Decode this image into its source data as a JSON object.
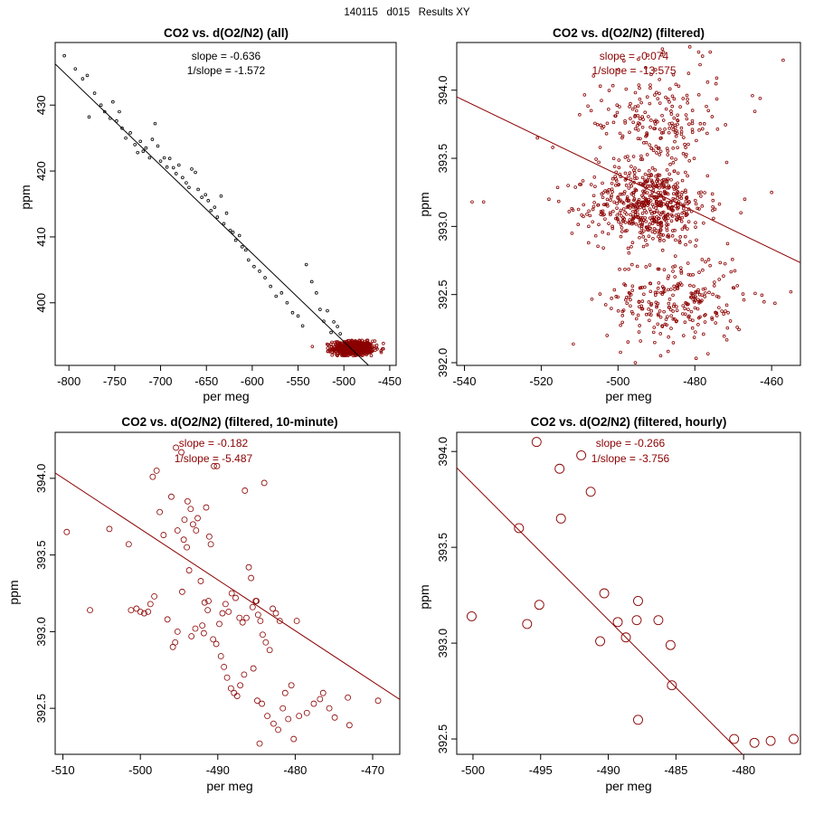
{
  "figure": {
    "suptitle": "140115   d015   Results XY",
    "background": "#ffffff"
  },
  "chart_data": [
    {
      "type": "scatter",
      "title": "CO2 vs. d(O2/N2) (all)",
      "xlabel": "per meg",
      "ylabel": "ppm",
      "xlim": [
        -815,
        -443
      ],
      "ylim": [
        390.5,
        439.5
      ],
      "xticks": [
        -800,
        -750,
        -700,
        -650,
        -600,
        -550,
        -500,
        -450
      ],
      "yticks": [
        400,
        410,
        420,
        430
      ],
      "fit": {
        "slope": -0.1338,
        "intercept": 327.2
      },
      "annotation": [
        "slope = -0.636",
        "1/slope = -1.572"
      ],
      "annotation_color": "#000000",
      "series": [
        {
          "name": "all",
          "color": "#000000",
          "points": [
            [
              -805,
              437.5
            ],
            [
              -793,
              435.5
            ],
            [
              -785,
              434
            ],
            [
              -780,
              434.5
            ],
            [
              -778,
              428.2
            ],
            [
              -772,
              431.8
            ],
            [
              -765,
              430
            ],
            [
              -761,
              429
            ],
            [
              -755,
              428
            ],
            [
              -752,
              430.5
            ],
            [
              -748,
              427.6
            ],
            [
              -745,
              429
            ],
            [
              -742,
              426.5
            ],
            [
              -738,
              425
            ],
            [
              -733,
              425.8
            ],
            [
              -728,
              424
            ],
            [
              -725,
              422.8
            ],
            [
              -722,
              424.5
            ],
            [
              -719,
              423
            ],
            [
              -716,
              423.5
            ],
            [
              -712,
              422
            ],
            [
              -709,
              424.8
            ],
            [
              -706,
              427.2
            ],
            [
              -703,
              423.8
            ],
            [
              -700,
              421.5
            ],
            [
              -696,
              422
            ],
            [
              -693,
              420.6
            ],
            [
              -690,
              421.9
            ],
            [
              -686,
              420.5
            ],
            [
              -683,
              419.6
            ],
            [
              -680,
              420.9
            ],
            [
              -676,
              419
            ],
            [
              -672,
              418.2
            ],
            [
              -669,
              417.5
            ],
            [
              -666,
              420.3
            ],
            [
              -662,
              419.8
            ],
            [
              -659,
              417.2
            ],
            [
              -655,
              416
            ],
            [
              -651,
              416.4
            ],
            [
              -648,
              415.5
            ],
            [
              -645,
              414
            ],
            [
              -641,
              414.5
            ],
            [
              -638,
              413
            ],
            [
              -634,
              416.2
            ],
            [
              -631,
              412
            ],
            [
              -628,
              413.6
            ],
            [
              -624,
              411
            ],
            [
              -621,
              410.7
            ],
            [
              -618,
              409.5
            ],
            [
              -614,
              410.2
            ],
            [
              -611,
              408.5
            ],
            [
              -607,
              408
            ],
            [
              -604,
              406.5
            ],
            [
              -598,
              405.5
            ],
            [
              -592,
              404.8
            ],
            [
              -586,
              403.8
            ],
            [
              -580,
              402.5
            ],
            [
              -574,
              401
            ],
            [
              -568,
              401.5
            ],
            [
              -562,
              400
            ],
            [
              -556,
              398.5
            ],
            [
              -550,
              398
            ],
            [
              -545,
              396.5
            ],
            [
              -541,
              405.8
            ],
            [
              -535,
              403.2
            ],
            [
              -530,
              401.5
            ],
            [
              -526,
              399
            ],
            [
              -522,
              397.2
            ],
            [
              -518,
              398.8
            ],
            [
              -514,
              395.5
            ],
            [
              -511,
              397.1
            ],
            [
              -507,
              396.4
            ],
            [
              -504,
              395.3
            ]
          ]
        },
        {
          "name": "filtered",
          "color": "#8b0000",
          "cloud": true,
          "cx": -490,
          "cy": 393.1,
          "sx": 11,
          "sy": 0.55,
          "n": 650,
          "xmin": -540,
          "xmax": -456,
          "ymin": 392.0,
          "ymax": 394.3
        }
      ]
    },
    {
      "type": "scatter",
      "title": "CO2 vs. d(O2/N2) (filtered)",
      "xlabel": "per meg",
      "ylabel": "ppm",
      "xlim": [
        -542,
        -452.5
      ],
      "ylim": [
        391.98,
        394.35
      ],
      "xticks": [
        -540,
        -520,
        -500,
        -480,
        -460
      ],
      "yticks": [
        392.0,
        392.5,
        393.0,
        393.5,
        394.0
      ],
      "fit": {
        "slope": -0.0136,
        "intercept": 386.58
      },
      "annotation": [
        "slope = -0.074",
        "1/slope = -13.575"
      ],
      "annotation_color": "#8b0000",
      "series": [
        {
          "name": "filtered",
          "color": "#8b0000",
          "cloud": true,
          "clusters": [
            {
              "cx": -492,
              "cy": 393.15,
              "sx": 7.5,
              "sy": 0.14,
              "n": 520
            },
            {
              "cx": -490,
              "cy": 393.75,
              "sx": 8,
              "sy": 0.22,
              "n": 230
            },
            {
              "cx": -485,
              "cy": 392.45,
              "sx": 9,
              "sy": 0.17,
              "n": 260
            }
          ],
          "extra_points": [
            [
              -538,
              393.18
            ],
            [
              -535,
              393.18
            ],
            [
              -521,
              393.65
            ],
            [
              -517,
              393.58
            ],
            [
              -510,
              393.82
            ],
            [
              -512,
              392.95
            ],
            [
              -507,
              393.85
            ],
            [
              -479,
              394.28
            ],
            [
              -478,
              394.25
            ],
            [
              -476,
              394.28
            ],
            [
              -470,
              392.55
            ],
            [
              -467,
              393.2
            ],
            [
              -465,
              393.96
            ],
            [
              -463,
              393.94
            ],
            [
              -457,
              394.22
            ],
            [
              -455,
              392.52
            ],
            [
              -460,
              393.25
            ],
            [
              -518,
              393.2
            ],
            [
              -513,
              393.3
            ],
            [
              -468,
              393.1
            ]
          ]
        }
      ]
    },
    {
      "type": "scatter",
      "title": "CO2 vs. d(O2/N2) (filtered, 10-minute)",
      "xlabel": "per meg",
      "ylabel": "ppm",
      "xlim": [
        -511,
        -466.5
      ],
      "ylim": [
        392.2,
        394.3
      ],
      "xticks": [
        -510,
        -500,
        -490,
        -480,
        -470
      ],
      "yticks": [
        392.5,
        393.0,
        393.5,
        394.0
      ],
      "fit": {
        "slope": -0.0332,
        "intercept": 377.07
      },
      "annotation": [
        "slope = -0.182",
        "1/slope = -5.487"
      ],
      "annotation_color": "#8b0000",
      "series": [
        {
          "name": "10-minute",
          "color": "#8b0000",
          "points": [
            [
              -509.5,
              393.65
            ],
            [
              -506.5,
              393.14
            ],
            [
              -504,
              393.67
            ],
            [
              -501.5,
              393.57
            ],
            [
              -501.2,
              393.14
            ],
            [
              -500.5,
              393.15
            ],
            [
              -500,
              393.13
            ],
            [
              -499.5,
              393.12
            ],
            [
              -499,
              393.13
            ],
            [
              -498.7,
              393.18
            ],
            [
              -498.2,
              393.23
            ],
            [
              -497.5,
              393.78
            ],
            [
              -498.4,
              394.01
            ],
            [
              -497.9,
              394.05
            ],
            [
              -497,
              393.63
            ],
            [
              -496.5,
              393.08
            ],
            [
              -496,
              393.88
            ],
            [
              -495.2,
              393.66
            ],
            [
              -495.4,
              394.2
            ],
            [
              -494.7,
              394.17
            ],
            [
              -494.3,
              393.73
            ],
            [
              -494,
              393.55
            ],
            [
              -494.4,
              393.6
            ],
            [
              -493.9,
              393.85
            ],
            [
              -493.5,
              393.8
            ],
            [
              -493.7,
              393.4
            ],
            [
              -493.2,
              393.7
            ],
            [
              -492.8,
              393.66
            ],
            [
              -492.6,
              393.74
            ],
            [
              -492.2,
              393.33
            ],
            [
              -491.7,
              393.19
            ],
            [
              -491.3,
              393.14
            ],
            [
              -491.1,
              393.62
            ],
            [
              -490.9,
              393.57
            ],
            [
              -491.5,
              393.81
            ],
            [
              -491.2,
              393.2
            ],
            [
              -490.5,
              394.08
            ],
            [
              -490.1,
              394.08
            ],
            [
              -489.8,
              393.05
            ],
            [
              -489.4,
              393.12
            ],
            [
              -489,
              393.18
            ],
            [
              -488.6,
              393.13
            ],
            [
              -488.2,
              393.25
            ],
            [
              -487.7,
              393.22
            ],
            [
              -487.2,
              393.09
            ],
            [
              -486.8,
              393.06
            ],
            [
              -486.3,
              393.09
            ],
            [
              -486,
              393.42
            ],
            [
              -485.7,
              393.35
            ],
            [
              -485.5,
              393.16
            ],
            [
              -485.1,
              393.2
            ],
            [
              -484.8,
              393.11
            ],
            [
              -484.5,
              393.07
            ],
            [
              -484.2,
              392.98
            ],
            [
              -483.8,
              392.93
            ],
            [
              -483.3,
              392.88
            ],
            [
              -482.9,
              393.15
            ],
            [
              -482.5,
              393.12
            ],
            [
              -482,
              393.07
            ],
            [
              -486.5,
              393.92
            ],
            [
              -484,
              393.97
            ],
            [
              -485,
              393.2
            ],
            [
              -492,
              393.04
            ],
            [
              -491.8,
              392.99
            ],
            [
              -490.6,
              392.95
            ],
            [
              -490.2,
              392.92
            ],
            [
              -489.6,
              392.84
            ],
            [
              -489.2,
              392.77
            ],
            [
              -488.8,
              392.7
            ],
            [
              -488.3,
              392.63
            ],
            [
              -487.9,
              392.6
            ],
            [
              -487.5,
              392.58
            ],
            [
              -487.1,
              392.65
            ],
            [
              -486.6,
              392.72
            ],
            [
              -485.4,
              392.76
            ],
            [
              -484.9,
              392.55
            ],
            [
              -484.3,
              392.53
            ],
            [
              -483.6,
              392.45
            ],
            [
              -482.8,
              392.4
            ],
            [
              -482.2,
              392.36
            ],
            [
              -481.6,
              392.5
            ],
            [
              -480.9,
              392.43
            ],
            [
              -480.2,
              392.3
            ],
            [
              -479.5,
              392.45
            ],
            [
              -478.5,
              392.47
            ],
            [
              -477.6,
              392.53
            ],
            [
              -476.8,
              392.56
            ],
            [
              -476.4,
              392.6
            ],
            [
              -475.6,
              392.5
            ],
            [
              -474.9,
              392.44
            ],
            [
              -473.2,
              392.57
            ],
            [
              -473,
              392.39
            ],
            [
              -469.3,
              392.55
            ],
            [
              -480.5,
              392.65
            ],
            [
              -481.3,
              392.6
            ],
            [
              -484.6,
              392.27
            ],
            [
              -479.8,
              393.07
            ],
            [
              -495.2,
              393.0
            ],
            [
              -495.5,
              392.93
            ],
            [
              -495.8,
              392.9
            ],
            [
              -493.4,
              392.97
            ],
            [
              -492.9,
              393.02
            ],
            [
              -494.6,
              393.26
            ]
          ]
        }
      ]
    },
    {
      "type": "scatter",
      "title": "CO2 vs. d(O2/N2) (filtered, hourly)",
      "xlabel": "per meg",
      "ylabel": "ppm",
      "xlim": [
        -501.2,
        -475.8
      ],
      "ylim": [
        392.42,
        394.1
      ],
      "xticks": [
        -500,
        -495,
        -490,
        -485,
        -480
      ],
      "yticks": [
        392.5,
        393.0,
        393.5,
        394.0
      ],
      "fit": {
        "slope": -0.0708,
        "intercept": 358.43
      },
      "annotation": [
        "slope = -0.266",
        "1/slope = -3.756"
      ],
      "annotation_color": "#8b0000",
      "series": [
        {
          "name": "hourly",
          "color": "#8b0000",
          "points": [
            [
              -500.1,
              393.14
            ],
            [
              -496.6,
              393.6
            ],
            [
              -496.0,
              393.1
            ],
            [
              -495.3,
              394.05
            ],
            [
              -495.1,
              393.2
            ],
            [
              -493.6,
              393.91
            ],
            [
              -493.5,
              393.65
            ],
            [
              -492.0,
              393.98
            ],
            [
              -491.3,
              393.79
            ],
            [
              -490.6,
              393.01
            ],
            [
              -490.3,
              393.26
            ],
            [
              -489.3,
              393.11
            ],
            [
              -488.7,
              393.03
            ],
            [
              -487.9,
              393.12
            ],
            [
              -487.8,
              393.22
            ],
            [
              -487.8,
              392.6
            ],
            [
              -486.3,
              393.12
            ],
            [
              -485.4,
              392.99
            ],
            [
              -485.3,
              392.78
            ],
            [
              -480.7,
              392.5
            ],
            [
              -479.2,
              392.48
            ],
            [
              -478.0,
              392.49
            ],
            [
              -476.3,
              392.5
            ]
          ]
        }
      ]
    }
  ]
}
